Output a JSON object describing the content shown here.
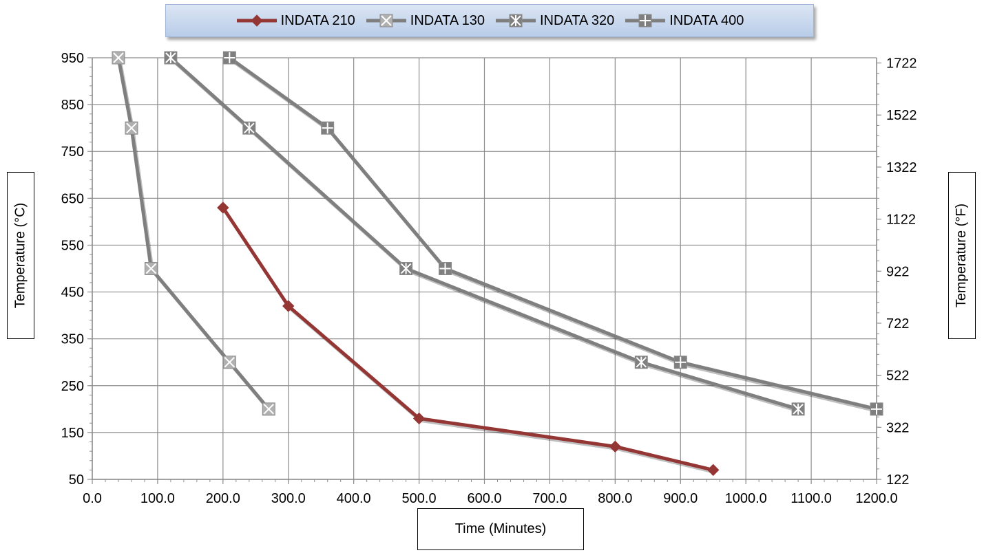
{
  "chart_data": {
    "type": "line",
    "xlabel": "Time (Minutes)",
    "ylabel": "Temperature (°C)",
    "y2label": "Temperature (°F)",
    "xlim": [
      0,
      1200
    ],
    "ylim": [
      50,
      950
    ],
    "x_ticks": [
      "0.0",
      "100.0",
      "200.0",
      "300.0",
      "400.0",
      "500.0",
      "600.0",
      "700.0",
      "800.0",
      "900.0",
      "1000.0",
      "1100.0",
      "1200.0"
    ],
    "y_ticks": [
      "50",
      "150",
      "250",
      "350",
      "450",
      "550",
      "650",
      "750",
      "850",
      "950"
    ],
    "y2_ticks": [
      "122",
      "322",
      "522",
      "722",
      "922",
      "1122",
      "1322",
      "1522",
      "1722"
    ],
    "grid": true,
    "legend_position": "top-center",
    "series": [
      {
        "name": "INDATA 210",
        "color": "#943634",
        "marker": "diamond",
        "x": [
          200,
          300,
          500,
          800,
          950
        ],
        "y": [
          630,
          420,
          180,
          120,
          70
        ]
      },
      {
        "name": "INDATA 130",
        "color": "#7f7f7f",
        "marker": "x-box",
        "x": [
          40,
          60,
          90,
          210,
          270
        ],
        "y": [
          950,
          800,
          500,
          300,
          200
        ]
      },
      {
        "name": "INDATA 320",
        "color": "#7f7f7f",
        "marker": "star-box",
        "x": [
          120,
          240,
          480,
          840,
          1080
        ],
        "y": [
          950,
          800,
          500,
          300,
          200
        ]
      },
      {
        "name": "INDATA 400",
        "color": "#7f7f7f",
        "marker": "plus-box",
        "x": [
          210,
          360,
          540,
          900,
          1200
        ],
        "y": [
          950,
          800,
          500,
          300,
          200
        ]
      }
    ]
  }
}
